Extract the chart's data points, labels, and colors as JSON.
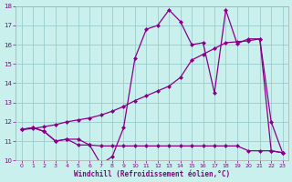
{
  "xlabel": "Windchill (Refroidissement éolien,°C)",
  "background_color": "#caf0ee",
  "line_color": "#880088",
  "grid_color": "#99cccc",
  "x_values": [
    0,
    1,
    2,
    3,
    4,
    5,
    6,
    7,
    8,
    9,
    10,
    11,
    12,
    13,
    14,
    15,
    16,
    17,
    18,
    19,
    20,
    21,
    22,
    23
  ],
  "y_spiky": [
    11.6,
    11.7,
    11.5,
    11.0,
    11.1,
    11.1,
    10.8,
    9.8,
    10.2,
    11.7,
    15.3,
    16.8,
    17.0,
    17.8,
    17.2,
    16.0,
    16.1,
    13.5,
    17.8,
    16.05,
    16.3,
    16.3,
    12.0,
    10.4
  ],
  "y_smooth": [
    11.6,
    11.7,
    11.5,
    11.0,
    11.1,
    10.8,
    10.8,
    10.75,
    10.75,
    10.75,
    10.75,
    10.75,
    10.75,
    10.75,
    10.75,
    10.75,
    10.75,
    10.75,
    10.75,
    10.75,
    10.5,
    10.5,
    10.5,
    10.4
  ],
  "y_trend": [
    11.6,
    11.65,
    11.75,
    11.85,
    12.0,
    12.1,
    12.2,
    12.35,
    12.55,
    12.8,
    13.1,
    13.35,
    13.6,
    13.85,
    14.3,
    15.2,
    15.5,
    15.8,
    16.1,
    16.15,
    16.2,
    16.3,
    10.5,
    10.4
  ],
  "ylim": [
    10,
    18
  ],
  "xlim": [
    -0.5,
    23.5
  ],
  "yticks": [
    10,
    11,
    12,
    13,
    14,
    15,
    16,
    17,
    18
  ],
  "xticks": [
    0,
    1,
    2,
    3,
    4,
    5,
    6,
    7,
    8,
    9,
    10,
    11,
    12,
    13,
    14,
    15,
    16,
    17,
    18,
    19,
    20,
    21,
    22,
    23
  ],
  "marker_size": 2.5,
  "line_width": 0.9
}
